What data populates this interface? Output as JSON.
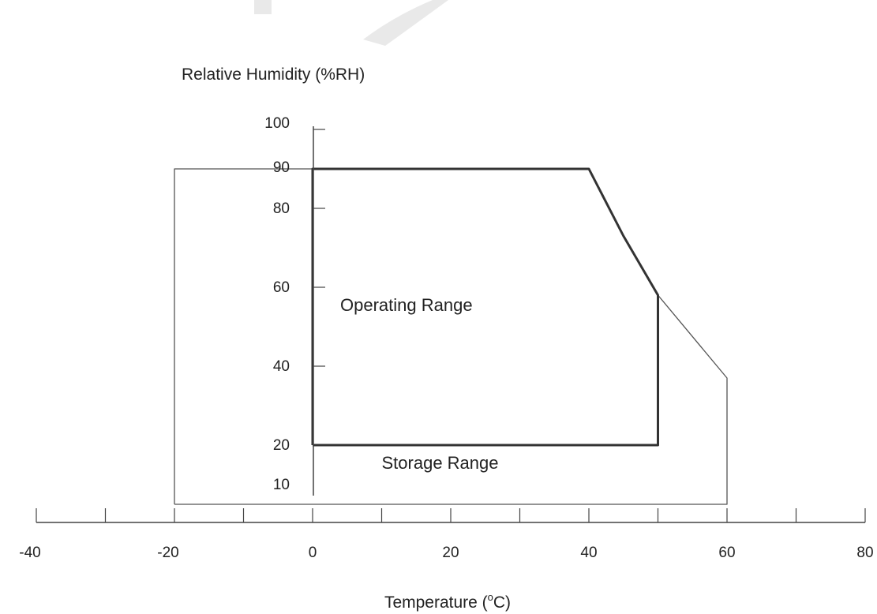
{
  "chart_data": {
    "type": "area",
    "ylabel": "Relative Humidity (%RH)",
    "xlabel_prefix": "Temperature (",
    "xlabel_sup": "o",
    "xlabel_suffix": "C)",
    "x_ticks": [
      -40,
      -20,
      0,
      20,
      40,
      60,
      80
    ],
    "x_minor_ticks": [
      -30,
      -10,
      10,
      30,
      50,
      70
    ],
    "y_ticks": [
      10,
      20,
      40,
      60,
      80,
      90,
      100
    ],
    "y_tick_marks": [
      40,
      60,
      80,
      100
    ],
    "xlim": [
      -40,
      80
    ],
    "grid": false,
    "regions": [
      {
        "name": "Storage Range",
        "label_at": [
          10,
          14
        ],
        "stroke": "#555555",
        "points": [
          [
            -20,
            5
          ],
          [
            -20,
            90
          ],
          [
            40,
            90
          ],
          [
            45,
            73
          ],
          [
            50,
            58
          ],
          [
            60,
            37
          ],
          [
            60,
            5
          ],
          [
            -20,
            5
          ]
        ]
      },
      {
        "name": "Operating Range",
        "label_at": [
          4,
          54
        ],
        "stroke": "#333333",
        "points": [
          [
            0,
            20
          ],
          [
            0,
            90
          ],
          [
            40,
            90
          ],
          [
            45,
            73
          ],
          [
            50,
            58
          ],
          [
            50,
            20
          ],
          [
            0,
            20
          ]
        ]
      }
    ],
    "colors": {
      "axis": "#444444",
      "storage": "#555555",
      "operating": "#333333",
      "text": "#222222"
    }
  }
}
